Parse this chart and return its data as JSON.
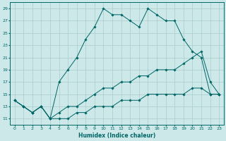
{
  "xlabel": "Humidex (Indice chaleur)",
  "background_color": "#cce8e8",
  "grid_color": "#aacccc",
  "line_color": "#006666",
  "xlim": [
    -0.5,
    23.5
  ],
  "ylim": [
    10.0,
    30.0
  ],
  "xticks": [
    0,
    1,
    2,
    3,
    4,
    5,
    6,
    7,
    8,
    9,
    10,
    11,
    12,
    13,
    14,
    15,
    16,
    17,
    18,
    19,
    20,
    21,
    22,
    23
  ],
  "yticks": [
    11,
    13,
    15,
    17,
    19,
    21,
    23,
    25,
    27,
    29
  ],
  "curve1_x": [
    0,
    1,
    2,
    3,
    4,
    5,
    6,
    7,
    8,
    9,
    10,
    11,
    12,
    13,
    14,
    15,
    16,
    17,
    18,
    19,
    20,
    21,
    22,
    23
  ],
  "curve1_y": [
    14,
    13,
    12,
    13,
    11,
    17,
    19,
    21,
    24,
    26,
    29,
    28,
    28,
    27,
    26,
    29,
    28,
    27,
    27,
    24,
    22,
    21,
    15,
    15
  ],
  "curve2_x": [
    0,
    1,
    2,
    3,
    4,
    5,
    6,
    7,
    8,
    9,
    10,
    11,
    12,
    13,
    14,
    15,
    16,
    17,
    18,
    19,
    20,
    21,
    22,
    23
  ],
  "curve2_y": [
    14,
    13,
    12,
    13,
    11,
    12,
    13,
    13,
    14,
    15,
    16,
    16,
    17,
    17,
    18,
    18,
    19,
    19,
    19,
    20,
    21,
    22,
    17,
    15
  ],
  "curve3_x": [
    0,
    1,
    2,
    3,
    4,
    5,
    6,
    7,
    8,
    9,
    10,
    11,
    12,
    13,
    14,
    15,
    16,
    17,
    18,
    19,
    20,
    21,
    22,
    23
  ],
  "curve3_y": [
    14,
    13,
    12,
    13,
    11,
    11,
    11,
    12,
    12,
    13,
    13,
    13,
    14,
    14,
    14,
    15,
    15,
    15,
    15,
    15,
    16,
    16,
    15,
    15
  ]
}
